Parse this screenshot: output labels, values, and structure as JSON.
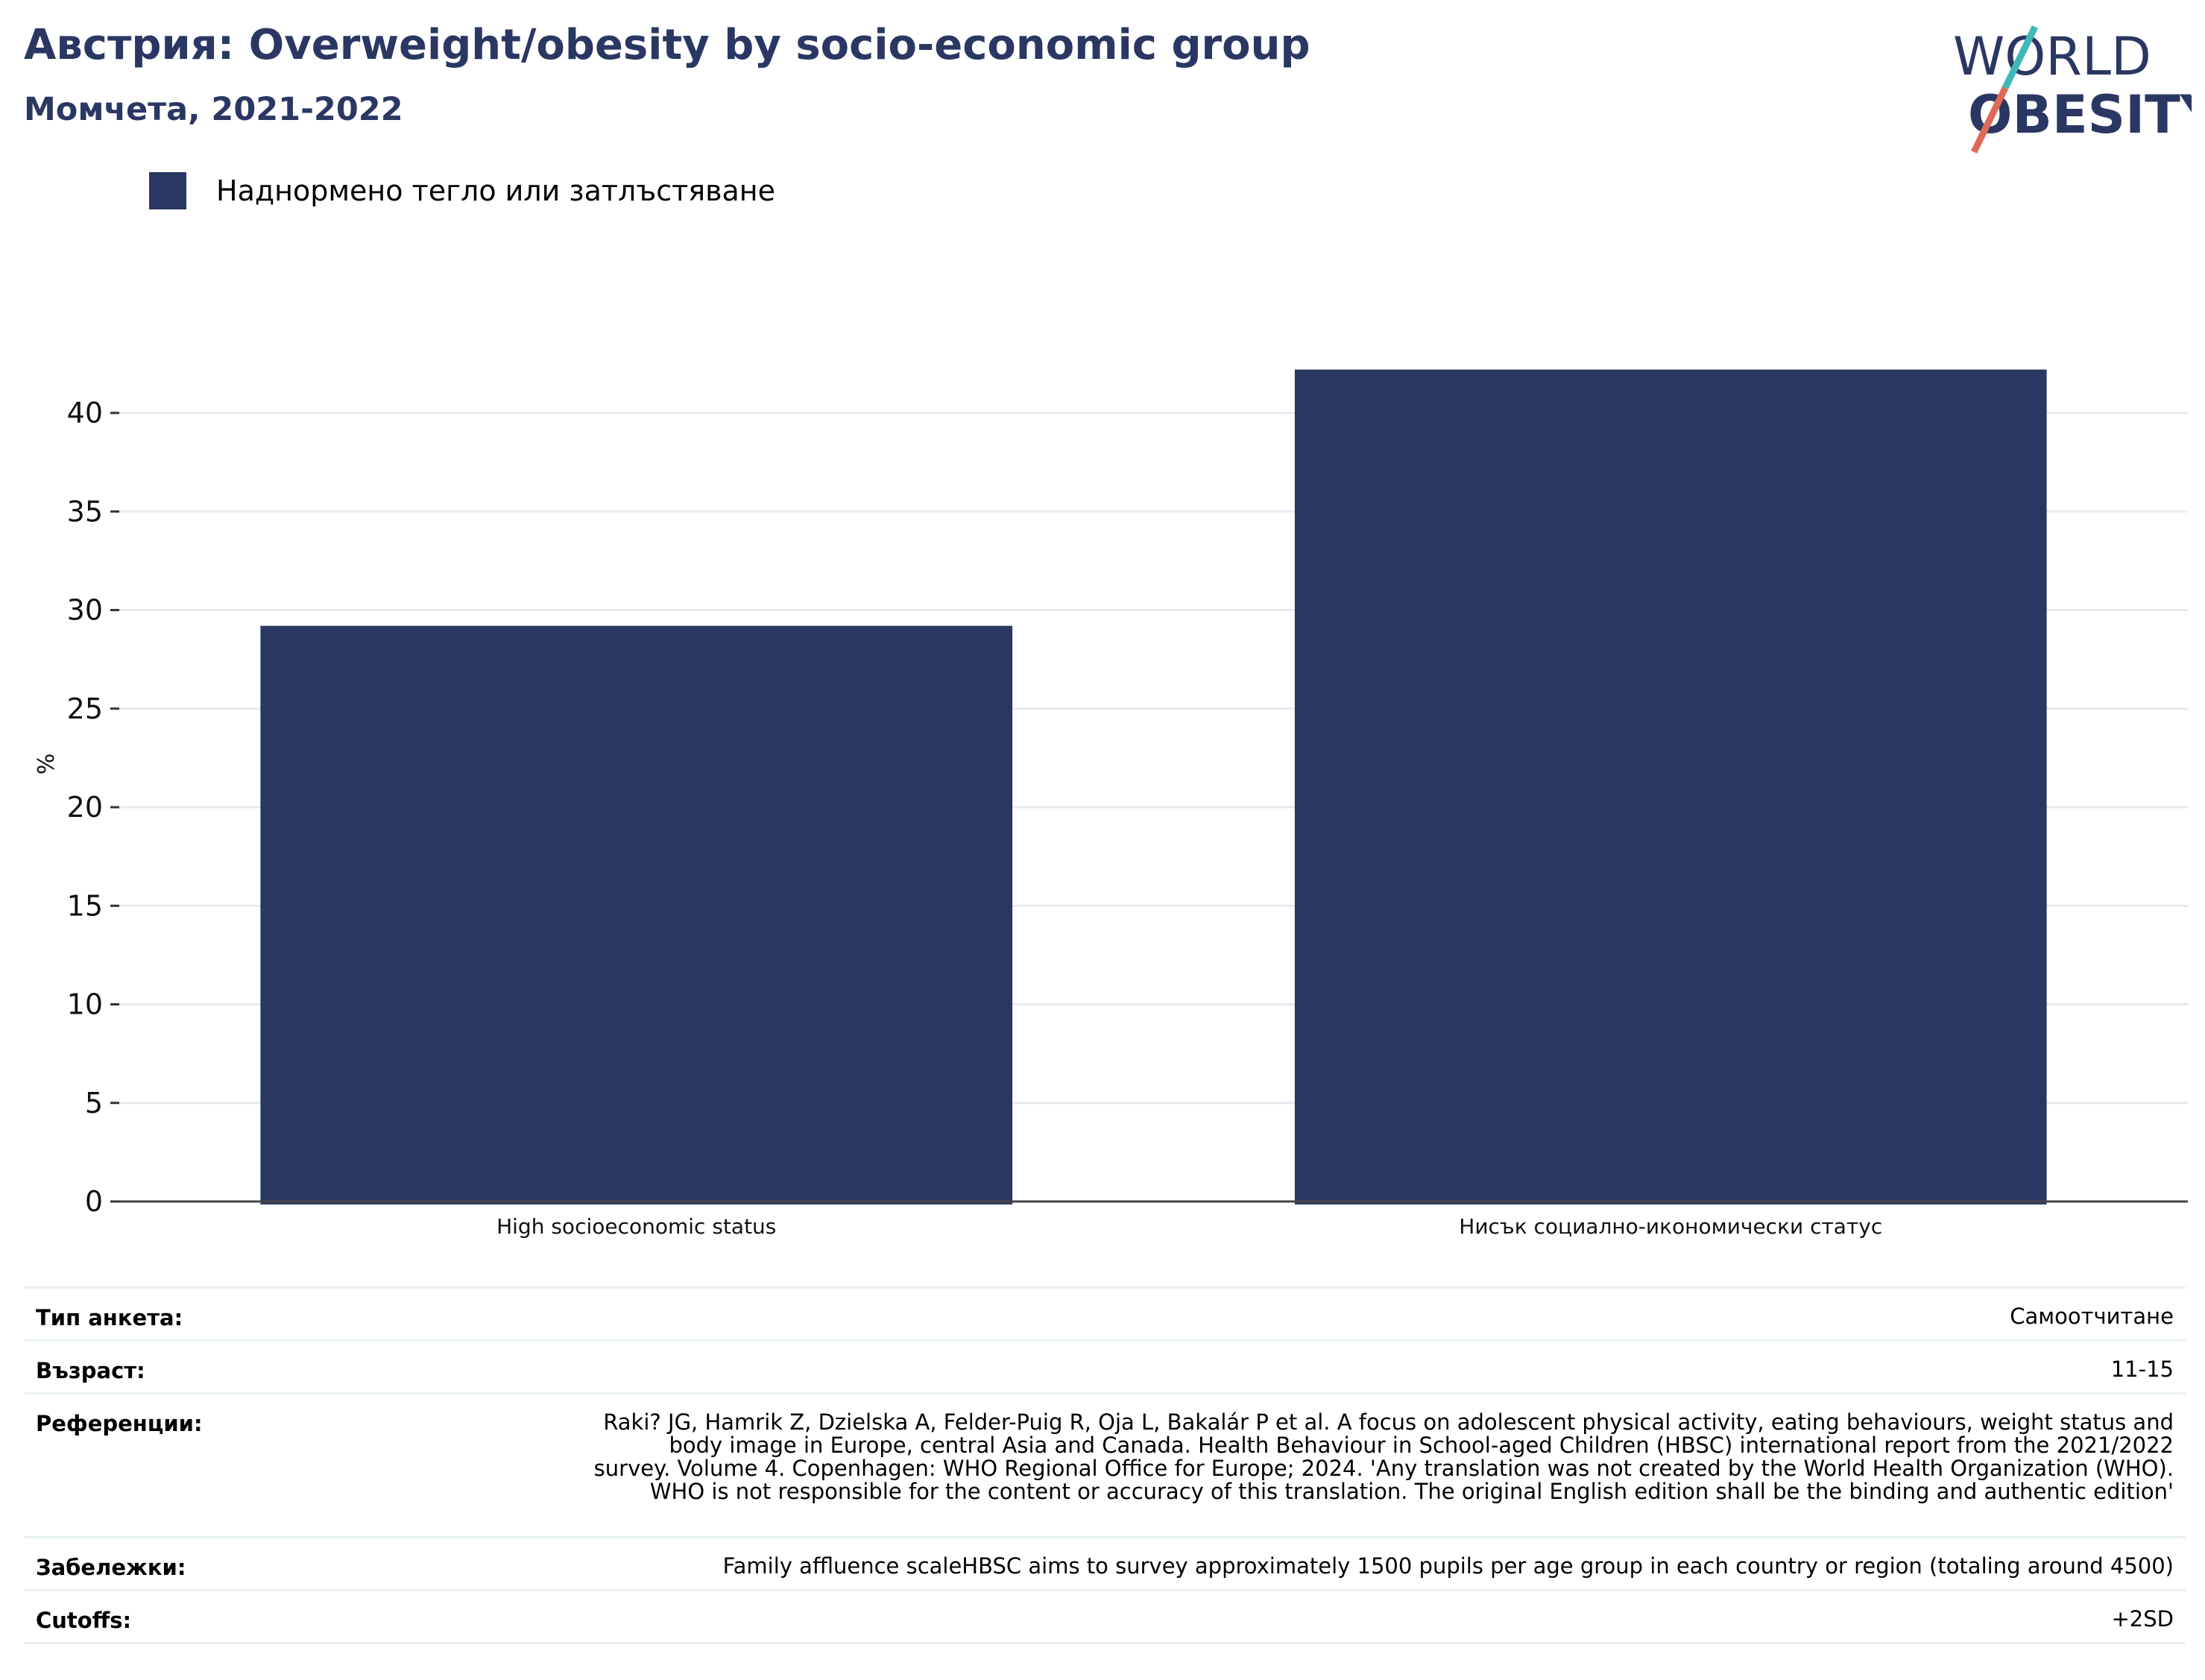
{
  "header": {
    "title": "Австрия: Overweight/obesity by socio-economic group",
    "subtitle": "Момчета, 2021-2022"
  },
  "logo": {
    "text_line1": "WORLD",
    "text_line2": "OBESITY",
    "colors": [
      "#2b3763",
      "#3fb8b8",
      "#e06a5a"
    ]
  },
  "legend": {
    "label": "Наднормено тегло или затлъстяване",
    "color": "#2b3763"
  },
  "chart_data": {
    "type": "bar",
    "categories": [
      "High socioeconomic status",
      "Нисък социално-икономически статус"
    ],
    "series": [
      {
        "name": "Наднормено тегло или затлъстяване",
        "values": [
          29.2,
          42.2
        ],
        "color": "#2b3763"
      }
    ],
    "ylabel": "%",
    "xlabel": "",
    "ylim": [
      0,
      45
    ],
    "yticks": [
      0,
      5,
      10,
      15,
      20,
      25,
      30,
      35,
      40
    ],
    "grid": true,
    "legend_position": "top-left"
  },
  "info": [
    {
      "label": "Тип анкета:",
      "value": "Самоотчитане"
    },
    {
      "label": "Възраст:",
      "value": "11-15"
    },
    {
      "label": "Референции:",
      "value": "Raki? JG, Hamrik Z, Dzielska A, Felder-Puig R, Oja L, Bakalár P et al. A focus on adolescent physical activity, eating behaviours, weight status and body image in Europe, central Asia and Canada. Health Behaviour in School-aged Children (HBSC) international report from the 2021/2022 survey. Volume 4. Copenhagen: WHO Regional Office for Europe; 2024. 'Any translation was not created by the World Health Organization (WHO). WHO is not responsible for the content or accuracy of this translation. The original English edition shall be the binding and authentic edition'"
    },
    {
      "label": "Забележки:",
      "value": "Family affluence scaleHBSC aims to survey approximately 1500 pupils per age group in each country or region (totaling around 4500)"
    },
    {
      "label": "Cutoffs:",
      "value": "+2SD"
    }
  ]
}
